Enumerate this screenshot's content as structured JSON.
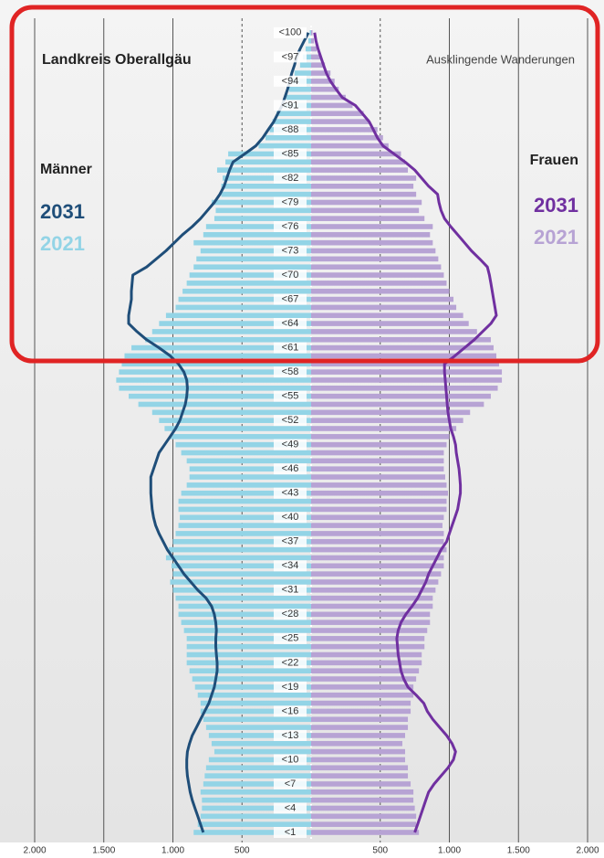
{
  "chart_data": {
    "type": "pyramid",
    "title": "Landkreis Oberallgäu",
    "subtitle": "Ausklingende Wanderungen",
    "xlim": [
      0,
      2000
    ],
    "xticks_left": [
      {
        "value": 2000,
        "label": "2.000"
      },
      {
        "value": 1500,
        "label": "1.500"
      },
      {
        "value": 1000,
        "label": "1.000"
      },
      500
    ],
    "xticks_right": [
      500,
      {
        "value": 1000,
        "label": "1.000"
      },
      {
        "value": 1500,
        "label": "1.500"
      },
      {
        "value": 2000,
        "label": "2.000"
      }
    ],
    "grid": true,
    "categories": [
      "<1",
      null,
      null,
      "<4",
      null,
      null,
      "<7",
      null,
      null,
      "<10",
      null,
      null,
      "<13",
      null,
      null,
      "<16",
      null,
      null,
      "<19",
      null,
      null,
      "<22",
      null,
      null,
      "<25",
      null,
      null,
      "<28",
      null,
      null,
      "<31",
      null,
      null,
      "<34",
      null,
      null,
      "<37",
      null,
      null,
      "<40",
      null,
      null,
      "<43",
      null,
      null,
      "<46",
      null,
      null,
      "<49",
      null,
      null,
      "<52",
      null,
      null,
      "<55",
      null,
      null,
      "<58",
      null,
      null,
      "<61",
      null,
      null,
      "<64",
      null,
      null,
      "<67",
      null,
      null,
      "<70",
      null,
      null,
      "<73",
      null,
      null,
      "<76",
      null,
      null,
      "<79",
      null,
      null,
      "<82",
      null,
      null,
      "<85",
      null,
      null,
      "<88",
      null,
      null,
      "<91",
      null,
      null,
      "<94",
      null,
      null,
      "<97",
      null,
      null,
      "<100"
    ],
    "groups": [
      {
        "name": "Männer",
        "side": "left",
        "series": [
          {
            "name": "2021",
            "style": "bar",
            "color": "#93d4e6",
            "values": [
              850,
              820,
              800,
              790,
              790,
              800,
              780,
              770,
              760,
              740,
              700,
              720,
              740,
              760,
              780,
              800,
              800,
              820,
              840,
              860,
              880,
              900,
              900,
              900,
              900,
              920,
              940,
              960,
              960,
              980,
              1000,
              1020,
              1000,
              1010,
              1050,
              1030,
              1000,
              980,
              960,
              950,
              960,
              960,
              940,
              900,
              880,
              880,
              900,
              940,
              980,
              1020,
              1060,
              1100,
              1150,
              1250,
              1320,
              1390,
              1410,
              1390,
              1370,
              1350,
              1300,
              1200,
              1150,
              1100,
              1050,
              980,
              960,
              930,
              900,
              880,
              850,
              830,
              800,
              850,
              780,
              760,
              700,
              690,
              720,
              650,
              650,
              640,
              680,
              620,
              600,
              380,
              330,
              300,
              280,
              250,
              200,
              180,
              160,
              140,
              120,
              80,
              60,
              40,
              20,
              10
            ]
          },
          {
            "name": "2031",
            "style": "line",
            "color": "#1f4e79",
            "values": [
              780,
              800,
              820,
              840,
              860,
              875,
              885,
              895,
              900,
              900,
              895,
              880,
              860,
              830,
              800,
              770,
              740,
              720,
              700,
              690,
              680,
              680,
              685,
              690,
              690,
              685,
              690,
              700,
              720,
              760,
              820,
              870,
              920,
              960,
              1000,
              1040,
              1070,
              1100,
              1125,
              1140,
              1150,
              1155,
              1160,
              1160,
              1160,
              1140,
              1120,
              1100,
              1060,
              1020,
              980,
              950,
              930,
              910,
              900,
              895,
              900,
              920,
              960,
              1020,
              1100,
              1190,
              1260,
              1320,
              1320,
              1310,
              1300,
              1300,
              1295,
              1290,
              1190,
              1120,
              1050,
              990,
              930,
              860,
              800,
              750,
              700,
              660,
              630,
              610,
              590,
              565,
              480,
              400,
              350,
              310,
              270,
              240,
              210,
              190,
              170,
              155,
              140,
              120,
              105,
              80,
              50,
              20
            ]
          }
        ]
      },
      {
        "name": "Frauen",
        "side": "right",
        "series": [
          {
            "name": "2021",
            "style": "bar",
            "color": "#b7a3d4",
            "values": [
              780,
              760,
              760,
              750,
              740,
              740,
              720,
              700,
              700,
              680,
              680,
              660,
              680,
              700,
              700,
              720,
              720,
              740,
              740,
              760,
              780,
              800,
              800,
              820,
              820,
              840,
              860,
              860,
              880,
              880,
              900,
              920,
              940,
              960,
              960,
              980,
              960,
              960,
              950,
              960,
              980,
              980,
              990,
              980,
              970,
              960,
              960,
              960,
              980,
              1000,
              1050,
              1100,
              1150,
              1250,
              1300,
              1350,
              1380,
              1380,
              1360,
              1340,
              1320,
              1300,
              1200,
              1140,
              1100,
              1050,
              1030,
              1000,
              980,
              960,
              940,
              920,
              900,
              880,
              860,
              880,
              820,
              780,
              800,
              760,
              740,
              760,
              700,
              680,
              650,
              560,
              520,
              480,
              420,
              380,
              300,
              250,
              200,
              170,
              140,
              100,
              70,
              40,
              20,
              10
            ]
          },
          {
            "name": "2031",
            "style": "line",
            "color": "#7030a0",
            "values": [
              750,
              770,
              790,
              810,
              830,
              850,
              890,
              940,
              990,
              1030,
              1045,
              1020,
              980,
              930,
              880,
              840,
              815,
              760,
              700,
              670,
              650,
              640,
              630,
              625,
              620,
              630,
              650,
              685,
              730,
              770,
              800,
              830,
              850,
              880,
              910,
              940,
              980,
              1000,
              1020,
              1040,
              1060,
              1070,
              1080,
              1080,
              1075,
              1070,
              1060,
              1050,
              1045,
              1030,
              1010,
              1000,
              990,
              985,
              980,
              975,
              970,
              965,
              965,
              1040,
              1110,
              1180,
              1240,
              1300,
              1340,
              1330,
              1320,
              1310,
              1300,
              1290,
              1275,
              1220,
              1160,
              1110,
              1060,
              1010,
              965,
              940,
              925,
              915,
              850,
              800,
              750,
              680,
              600,
              520,
              480,
              450,
              420,
              370,
              320,
              225,
              180,
              140,
              110,
              90,
              70,
              50,
              35,
              25
            ]
          }
        ]
      }
    ]
  }
}
